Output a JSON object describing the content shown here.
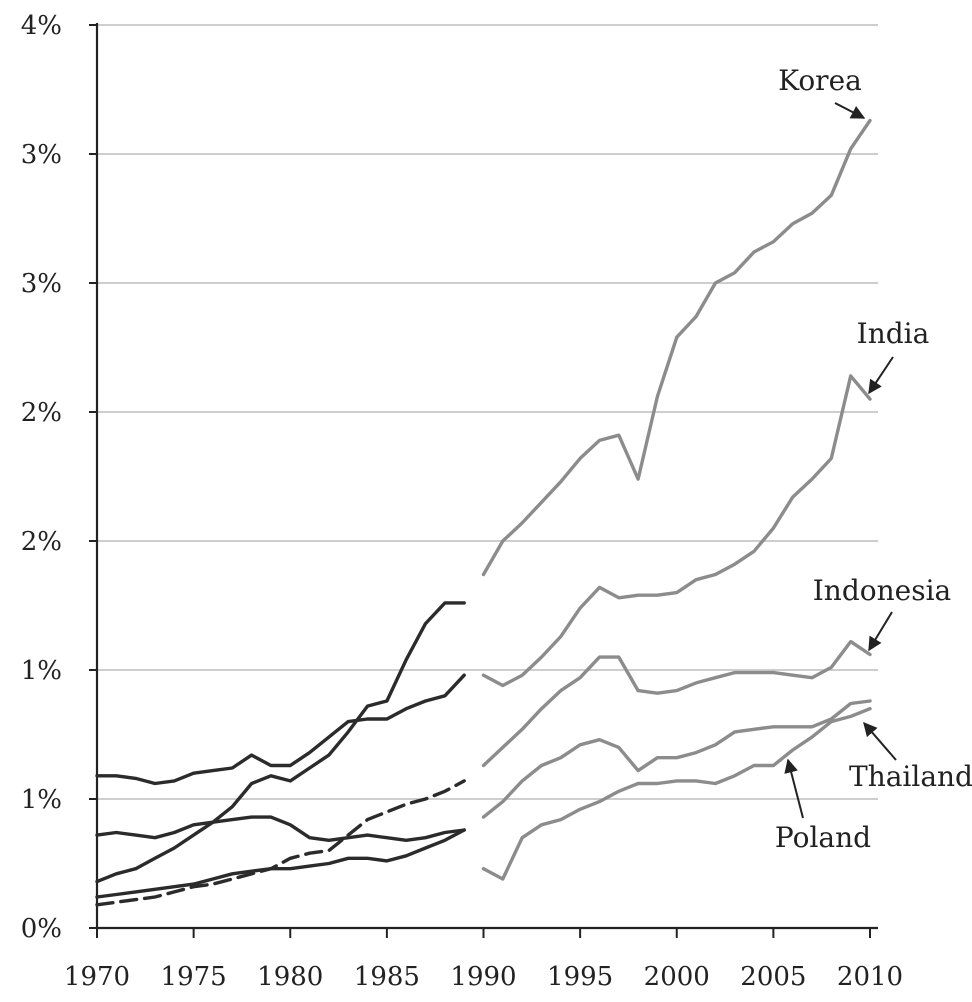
{
  "chart_data": {
    "type": "line",
    "title": "",
    "xlabel": "",
    "ylabel": "",
    "xlim": [
      1970,
      2010
    ],
    "ylim": [
      0,
      3.5
    ],
    "grid": true,
    "y_ticks": [
      {
        "value": 0.0,
        "label": "0%"
      },
      {
        "value": 0.5,
        "label": "1%"
      },
      {
        "value": 1.0,
        "label": "1%"
      },
      {
        "value": 1.5,
        "label": "2%"
      },
      {
        "value": 2.0,
        "label": "2%"
      },
      {
        "value": 2.5,
        "label": "3%"
      },
      {
        "value": 3.0,
        "label": "3%"
      },
      {
        "value": 3.5,
        "label": "4%"
      }
    ],
    "x_ticks": [
      1970,
      1975,
      1980,
      1985,
      1990,
      1995,
      2000,
      2005,
      2010
    ],
    "colors": {
      "early": "#2b2b2b",
      "late": "#8c8c8c",
      "grid": "#bdbdbd"
    },
    "series": [
      {
        "period": "early",
        "dash": false,
        "x": [
          1970,
          1971,
          1972,
          1973,
          1974,
          1975,
          1976,
          1977,
          1978,
          1979,
          1980,
          1981,
          1982,
          1983,
          1984,
          1985,
          1986,
          1987,
          1988,
          1989
        ],
        "values": [
          0.59,
          0.59,
          0.58,
          0.56,
          0.57,
          0.6,
          0.61,
          0.62,
          0.67,
          0.63,
          0.63,
          0.68,
          0.74,
          0.8,
          0.81,
          0.81,
          0.85,
          0.88,
          0.9,
          0.98
        ]
      },
      {
        "period": "early",
        "dash": false,
        "x": [
          1970,
          1971,
          1972,
          1973,
          1974,
          1975,
          1976,
          1977,
          1978,
          1979,
          1980,
          1981,
          1982,
          1983,
          1984,
          1985,
          1986,
          1987,
          1988,
          1989
        ],
        "values": [
          0.36,
          0.37,
          0.36,
          0.35,
          0.37,
          0.4,
          0.41,
          0.42,
          0.43,
          0.43,
          0.4,
          0.35,
          0.34,
          0.35,
          0.36,
          0.35,
          0.34,
          0.35,
          0.37,
          0.38
        ]
      },
      {
        "period": "early",
        "dash": false,
        "x": [
          1970,
          1971,
          1972,
          1973,
          1974,
          1975,
          1976,
          1977,
          1978,
          1979,
          1980,
          1981,
          1982,
          1983,
          1984,
          1985,
          1986,
          1987,
          1988,
          1989
        ],
        "values": [
          0.18,
          0.21,
          0.23,
          0.27,
          0.31,
          0.36,
          0.41,
          0.47,
          0.56,
          0.59,
          0.57,
          0.62,
          0.67,
          0.76,
          0.86,
          0.88,
          1.04,
          1.18,
          1.26,
          1.26
        ]
      },
      {
        "period": "early",
        "dash": true,
        "x": [
          1970,
          1971,
          1972,
          1973,
          1974,
          1975,
          1976,
          1977,
          1978,
          1979,
          1980,
          1981,
          1982,
          1983,
          1984,
          1985,
          1986,
          1987,
          1988,
          1989
        ],
        "values": [
          0.09,
          0.1,
          0.11,
          0.12,
          0.14,
          0.16,
          0.17,
          0.19,
          0.21,
          0.23,
          0.27,
          0.29,
          0.3,
          0.36,
          0.42,
          0.45,
          0.48,
          0.5,
          0.53,
          0.57
        ]
      },
      {
        "period": "early",
        "dash": false,
        "x": [
          1970,
          1971,
          1972,
          1973,
          1974,
          1975,
          1976,
          1977,
          1978,
          1979,
          1980,
          1981,
          1982,
          1983,
          1984,
          1985,
          1986,
          1987,
          1988,
          1989
        ],
        "values": [
          0.12,
          0.13,
          0.14,
          0.15,
          0.16,
          0.17,
          0.19,
          0.21,
          0.22,
          0.23,
          0.23,
          0.24,
          0.25,
          0.27,
          0.27,
          0.26,
          0.28,
          0.31,
          0.34,
          0.38
        ]
      },
      {
        "period": "late",
        "label": "Korea",
        "x": [
          1990,
          1991,
          1992,
          1993,
          1994,
          1995,
          1996,
          1997,
          1998,
          1999,
          2000,
          2001,
          2002,
          2003,
          2004,
          2005,
          2006,
          2007,
          2008,
          2009,
          2010
        ],
        "values": [
          1.37,
          1.5,
          1.57,
          1.65,
          1.73,
          1.82,
          1.89,
          1.91,
          1.74,
          2.06,
          2.29,
          2.37,
          2.5,
          2.54,
          2.62,
          2.66,
          2.73,
          2.77,
          2.84,
          3.02,
          3.13
        ]
      },
      {
        "period": "late",
        "label": "India",
        "x": [
          1990,
          1991,
          1992,
          1993,
          1994,
          1995,
          1996,
          1997,
          1998,
          1999,
          2000,
          2001,
          2002,
          2003,
          2004,
          2005,
          2006,
          2007,
          2008,
          2009,
          2010
        ],
        "values": [
          0.98,
          0.94,
          0.98,
          1.05,
          1.13,
          1.24,
          1.32,
          1.28,
          1.29,
          1.29,
          1.3,
          1.35,
          1.37,
          1.41,
          1.46,
          1.55,
          1.67,
          1.74,
          1.82,
          2.14,
          2.05
        ]
      },
      {
        "period": "late",
        "label": "Indonesia",
        "x": [
          1990,
          1991,
          1992,
          1993,
          1994,
          1995,
          1996,
          1997,
          1998,
          1999,
          2000,
          2001,
          2002,
          2003,
          2004,
          2005,
          2006,
          2007,
          2008,
          2009,
          2010
        ],
        "values": [
          0.63,
          0.7,
          0.77,
          0.85,
          0.92,
          0.97,
          1.05,
          1.05,
          0.92,
          0.91,
          0.92,
          0.95,
          0.97,
          0.99,
          0.99,
          0.99,
          0.98,
          0.97,
          1.01,
          1.11,
          1.06
        ]
      },
      {
        "period": "late",
        "label": "Thailand",
        "x": [
          1990,
          1991,
          1992,
          1993,
          1994,
          1995,
          1996,
          1997,
          1998,
          1999,
          2000,
          2001,
          2002,
          2003,
          2004,
          2005,
          2006,
          2007,
          2008,
          2009,
          2010
        ],
        "values": [
          0.43,
          0.49,
          0.57,
          0.63,
          0.66,
          0.71,
          0.73,
          0.7,
          0.61,
          0.66,
          0.66,
          0.68,
          0.71,
          0.76,
          0.77,
          0.78,
          0.78,
          0.78,
          0.81,
          0.87,
          0.88
        ]
      },
      {
        "period": "late",
        "label": "Poland",
        "x": [
          1990,
          1991,
          1992,
          1993,
          1994,
          1995,
          1996,
          1997,
          1998,
          1999,
          2000,
          2001,
          2002,
          2003,
          2004,
          2005,
          2006,
          2007,
          2008,
          2009,
          2010
        ],
        "values": [
          0.23,
          0.19,
          0.35,
          0.4,
          0.42,
          0.46,
          0.49,
          0.53,
          0.56,
          0.56,
          0.57,
          0.57,
          0.56,
          0.59,
          0.63,
          0.63,
          0.69,
          0.74,
          0.8,
          0.82,
          0.85
        ]
      }
    ],
    "annotations": [
      {
        "text": "Korea",
        "series": "Korea",
        "target": [
          2010,
          3.13
        ]
      },
      {
        "text": "India",
        "series": "India",
        "target": [
          2010,
          2.05
        ]
      },
      {
        "text": "Indonesia",
        "series": "Indonesia",
        "target": [
          2010,
          1.06
        ]
      },
      {
        "text": "Thailand",
        "series": "Thailand",
        "target": [
          2010,
          0.88
        ]
      },
      {
        "text": "Poland",
        "series": "Poland",
        "target": [
          2006,
          0.68
        ]
      }
    ]
  }
}
